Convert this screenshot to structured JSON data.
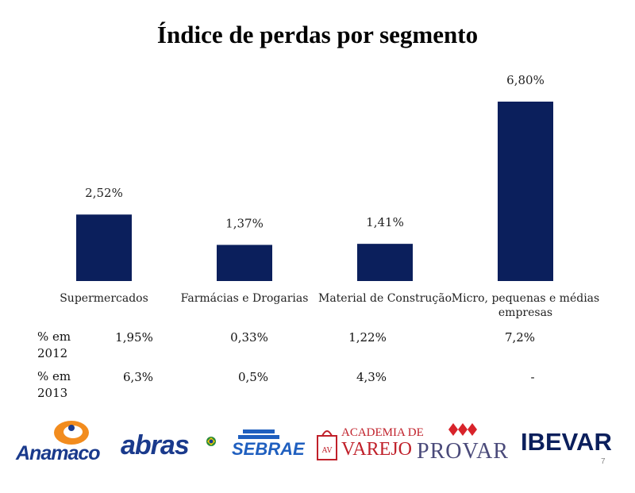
{
  "title": "Índice de perdas por segmento",
  "chart_data": {
    "type": "bar",
    "categories": [
      "Supermercados",
      "Farmácias e Drogarias",
      "Material de Construção",
      "Micro, pequenas e médias empresas"
    ],
    "values": [
      2.52,
      1.37,
      1.41,
      6.8
    ],
    "value_labels": [
      "2,52%",
      "1,37%",
      "1,41%",
      "6,80%"
    ],
    "title": "Índice de perdas por segmento",
    "ylim": [
      0,
      6.8
    ],
    "color": "#0b1f5c",
    "grid": false,
    "legend": "none"
  },
  "table": {
    "rows": [
      {
        "label_line1": "% em",
        "label_line2": "2012",
        "values": [
          "1,95%",
          "0,33%",
          "1,22%",
          "7,2%"
        ]
      },
      {
        "label_line1": "% em",
        "label_line2": "2013",
        "values": [
          "6,3%",
          "0,5%",
          "4,3%",
          "-"
        ]
      }
    ]
  },
  "logos": {
    "anamaco": "Anamaco",
    "abras": "abras",
    "sebrae": "SEBRAE",
    "academia_line1": "ACADEMIA DE",
    "academia_line2": "VAREJO",
    "academia_badge": "AV",
    "provar": "PROVAR",
    "ibevar": "IBEVAR"
  },
  "page_number": "7"
}
